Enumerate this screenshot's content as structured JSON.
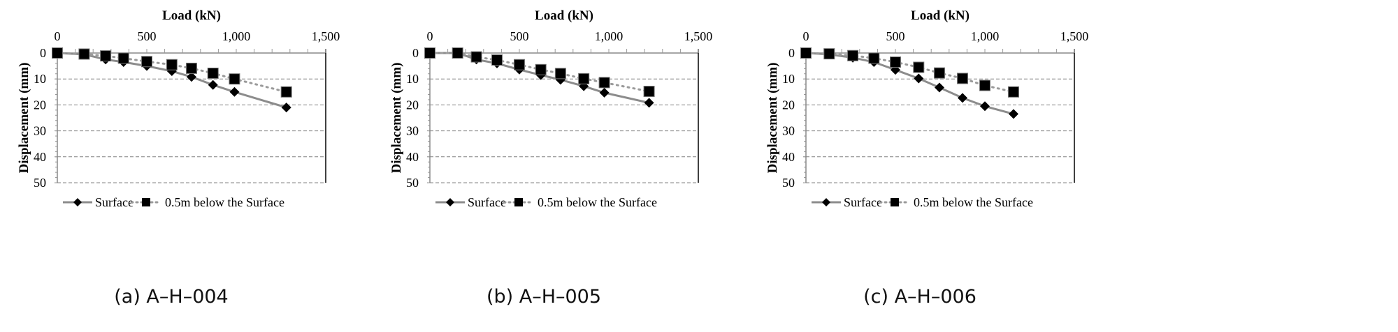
{
  "chart_data": [
    {
      "type": "line",
      "caption": "(a) A–H–004",
      "xlabel": "Load (kN)",
      "ylabel": "Displacement (mm)",
      "xlim": [
        0,
        1500
      ],
      "ylim": [
        0,
        50
      ],
      "xticks": [
        "0",
        "500",
        "1,000",
        "1,500"
      ],
      "yticks": [
        "0",
        "10",
        "20",
        "30",
        "40",
        "50"
      ],
      "x_axis_position": "top",
      "y_inverted": true,
      "grid": "horizontal dashed",
      "legend_position": "bottom",
      "series": [
        {
          "name": "Surface",
          "marker": "diamond",
          "line": "solid",
          "x": [
            0,
            150,
            270,
            370,
            500,
            640,
            750,
            870,
            990,
            1280
          ],
          "y": [
            0,
            0.5,
            2.5,
            3.5,
            5,
            7,
            9.2,
            12.3,
            15,
            21
          ]
        },
        {
          "name": "0.5m below the Surface",
          "marker": "square",
          "line": "dotted",
          "x": [
            0,
            150,
            270,
            370,
            500,
            640,
            750,
            870,
            990,
            1280
          ],
          "y": [
            0,
            0.4,
            1.1,
            2,
            3.3,
            4.5,
            5.9,
            7.8,
            10,
            15
          ]
        }
      ]
    },
    {
      "type": "line",
      "caption": "(b) A–H–005",
      "xlabel": "Load (kN)",
      "ylabel": "Displacement (mm)",
      "xlim": [
        0,
        1500
      ],
      "ylim": [
        0,
        50
      ],
      "xticks": [
        "0",
        "500",
        "1,000",
        "1,500"
      ],
      "yticks": [
        "0",
        "10",
        "20",
        "30",
        "40",
        "50"
      ],
      "x_axis_position": "top",
      "y_inverted": true,
      "grid": "horizontal dashed",
      "legend_position": "bottom",
      "series": [
        {
          "name": "Surface",
          "marker": "diamond",
          "line": "solid",
          "x": [
            0,
            155,
            260,
            375,
            500,
            620,
            730,
            860,
            975,
            1225
          ],
          "y": [
            0,
            0,
            2.5,
            4,
            6.4,
            8.5,
            10.3,
            12.8,
            15.3,
            19.2
          ]
        },
        {
          "name": "0.5m below the Surface",
          "marker": "square",
          "line": "dotted",
          "x": [
            0,
            155,
            260,
            375,
            500,
            620,
            730,
            860,
            975,
            1225
          ],
          "y": [
            0,
            0,
            1.5,
            2.7,
            4.5,
            6.4,
            7.9,
            9.9,
            11.4,
            14.8
          ]
        }
      ]
    },
    {
      "type": "line",
      "caption": "(c) A–H–006",
      "xlabel": "Load (kN)",
      "ylabel": "Displacement (mm)",
      "xlim": [
        0,
        1500
      ],
      "ylim": [
        0,
        50
      ],
      "xticks": [
        "0",
        "500",
        "1,000",
        "1,500"
      ],
      "yticks": [
        "0",
        "10",
        "20",
        "30",
        "40",
        "50"
      ],
      "x_axis_position": "top",
      "y_inverted": true,
      "grid": "horizontal dashed",
      "legend_position": "bottom",
      "series": [
        {
          "name": "Surface",
          "marker": "diamond",
          "line": "solid",
          "x": [
            0,
            130,
            262,
            380,
            500,
            630,
            746,
            875,
            1000,
            1160
          ],
          "y": [
            0,
            0.5,
            1.8,
            3.5,
            6.5,
            9.8,
            13.3,
            17.3,
            20.5,
            23.5
          ]
        },
        {
          "name": "0.5m below the Surface",
          "marker": "square",
          "line": "dotted",
          "x": [
            0,
            130,
            262,
            380,
            500,
            630,
            746,
            875,
            1000,
            1160
          ],
          "y": [
            0,
            0.3,
            1,
            2,
            3.5,
            5.5,
            7.7,
            9.8,
            12.5,
            15
          ]
        }
      ]
    }
  ],
  "colors": {
    "surface_line": "#8c8c8c",
    "below_line": "#9a9a9a",
    "marker": "#000000",
    "grid": "#808080"
  }
}
